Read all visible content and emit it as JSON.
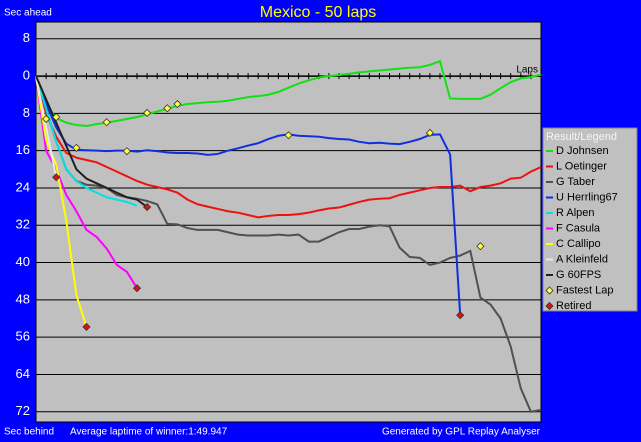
{
  "chart_data": {
    "type": "line",
    "title": "Mexico - 50 laps",
    "y_label_top": "Sec ahead",
    "y_label_bottom": "Sec behind",
    "x_label": "Laps",
    "footer_left": "Average laptime of winner:1:49.947",
    "footer_right": "Generated by GPL Replay Analyser",
    "legend_title": "Result/Legend",
    "y_inverted": true,
    "grid": true,
    "xlim": [
      0,
      50
    ],
    "ylim": [
      -11.6,
      74.2
    ],
    "yticks": [
      {
        "value": -8,
        "label": "8"
      },
      0,
      8,
      16,
      24,
      32,
      40,
      48,
      56,
      64,
      72
    ],
    "x": [
      0,
      1,
      2,
      3,
      4,
      5,
      6,
      7,
      8,
      9,
      10,
      11,
      12,
      13,
      14,
      15,
      16,
      17,
      18,
      19,
      20,
      21,
      22,
      23,
      24,
      25,
      26,
      27,
      28,
      29,
      30,
      31,
      32,
      33,
      34,
      35,
      36,
      37,
      38,
      39,
      40,
      41,
      42,
      43,
      44,
      45,
      46,
      47,
      48,
      49,
      50
    ],
    "series": [
      {
        "name": "D Johnsen",
        "color": "#11e011",
        "values": [
          0,
          6,
          9,
          10,
          10.5,
          10.7,
          10.3,
          10,
          9.6,
          9.2,
          8.8,
          8.2,
          7.6,
          7,
          6.4,
          6,
          5.8,
          5.6,
          5.5,
          5.3,
          4.9,
          4.5,
          4.3,
          4,
          3.4,
          2.5,
          1.6,
          0.9,
          0.3,
          0,
          -0.2,
          -0.5,
          -0.8,
          -1,
          -1.2,
          -1.4,
          -1.6,
          -1.8,
          -1.9,
          -2.4,
          -3.2,
          4.8,
          4.9,
          4.9,
          4.9,
          4,
          2.6,
          1.3,
          0.5,
          0.2,
          -0.3
        ]
      },
      {
        "name": "L Oetinger",
        "color": "#ee1111",
        "values": [
          0,
          8,
          13,
          16.5,
          17.5,
          18,
          18.5,
          19.5,
          20.5,
          21.5,
          22.5,
          23.3,
          23.8,
          24.3,
          25,
          26.5,
          27.5,
          28,
          28.5,
          29,
          29.3,
          29.8,
          30.3,
          30,
          29.8,
          29.8,
          29.6,
          29.3,
          28.8,
          28.4,
          28.2,
          27.6,
          27,
          26.5,
          26.3,
          26.2,
          25.5,
          25,
          24.5,
          24,
          23.8,
          23.8,
          23.5,
          24.7,
          23.8,
          23.5,
          23,
          22,
          21.8,
          20.5,
          19.5
        ]
      },
      {
        "name": "G Taber",
        "color": "#505050",
        "values": [
          0,
          7,
          14,
          20,
          22.5,
          23.3,
          23.5,
          24,
          25.5,
          26,
          26.3,
          26.8,
          27.5,
          31.7,
          31.8,
          32.6,
          33,
          33,
          33,
          33.5,
          34,
          34.2,
          34.2,
          34.2,
          34,
          34.2,
          34,
          35.5,
          35.5,
          34.5,
          33.5,
          32.8,
          32.8,
          32.3,
          32,
          32.2,
          36.8,
          38.8,
          39,
          40.5,
          40,
          39,
          38.5,
          37.5,
          47.5,
          49,
          52,
          58,
          67,
          72,
          71.6
        ]
      },
      {
        "name": "U Herrling67",
        "color": "#1030e0",
        "values": [
          0,
          6,
          11,
          14.5,
          15.8,
          15.9,
          16,
          16.1,
          16,
          16,
          16.2,
          15.9,
          16.1,
          16.4,
          16.5,
          16.5,
          16.6,
          16.9,
          16.7,
          16,
          15.5,
          14.9,
          14.4,
          13.5,
          12.8,
          12.5,
          12.8,
          12.9,
          13,
          13.3,
          13.5,
          13.6,
          14.1,
          14.4,
          14.3,
          14.5,
          14.6,
          14.1,
          13.5,
          12.6,
          12.5,
          16.8,
          51.3,
          null,
          null,
          null,
          null,
          null,
          null,
          null,
          null
        ]
      },
      {
        "name": "R Alpen",
        "color": "#00e0e0",
        "values": [
          0,
          7,
          14,
          20,
          22.5,
          24,
          25,
          26,
          26.5,
          27,
          27.8,
          null,
          null,
          null,
          null,
          null,
          null,
          null,
          null,
          null,
          null,
          null,
          null,
          null,
          null,
          null,
          null,
          null,
          null,
          null,
          null,
          null,
          null,
          null,
          null,
          null,
          null,
          null,
          null,
          null,
          null,
          null,
          null,
          null,
          null,
          null,
          null,
          null,
          null,
          null,
          null
        ]
      },
      {
        "name": "F Casula",
        "color": "#ff00ff",
        "values": [
          0,
          16,
          20,
          25.5,
          29,
          33,
          34.5,
          37,
          40.5,
          42,
          45.5,
          null,
          null,
          null,
          null,
          null,
          null,
          null,
          null,
          null,
          null,
          null,
          null,
          null,
          null,
          null,
          null,
          null,
          null,
          null,
          null,
          null,
          null,
          null,
          null,
          null,
          null,
          null,
          null,
          null,
          null,
          null,
          null,
          null,
          null,
          null,
          null,
          null,
          null,
          null,
          null
        ]
      },
      {
        "name": "C Callipo",
        "color": "#ffff00",
        "values": [
          0,
          13.7,
          19,
          31,
          47,
          53.8,
          null,
          null,
          null,
          null,
          null,
          null,
          null,
          null,
          null,
          null,
          null,
          null,
          null,
          null,
          null,
          null,
          null,
          null,
          null,
          null,
          null,
          null,
          null,
          null,
          null,
          null,
          null,
          null,
          null,
          null,
          null,
          null,
          null,
          null,
          null,
          null,
          null,
          null,
          null,
          null,
          null,
          null,
          null,
          null,
          null
        ]
      },
      {
        "name": "A Kleinfeld",
        "color": "#e8e8e8",
        "values": [
          0,
          11,
          21.7,
          null,
          null,
          null,
          null,
          null,
          null,
          null,
          null,
          null,
          null,
          null,
          null,
          null,
          null,
          null,
          null,
          null,
          null,
          null,
          null,
          null,
          null,
          null,
          null,
          null,
          null,
          null,
          null,
          null,
          null,
          null,
          null,
          null,
          null,
          null,
          null,
          null,
          null,
          null,
          null,
          null,
          null,
          null,
          null,
          null,
          null,
          null,
          null
        ]
      },
      {
        "name": "G 60FPS",
        "color": "#202020",
        "values": [
          0,
          5,
          10,
          15,
          20,
          22,
          23,
          24,
          25,
          26,
          26.5,
          28.1,
          null,
          null,
          null,
          null,
          null,
          null,
          null,
          null,
          null,
          null,
          null,
          null,
          null,
          null,
          null,
          null,
          null,
          null,
          null,
          null,
          null,
          null,
          null,
          null,
          null,
          null,
          null,
          null,
          null,
          null,
          null,
          null,
          null,
          null,
          null,
          null,
          null,
          null,
          null
        ]
      }
    ],
    "fastest_lap": {
      "name": "Fastest Lap",
      "color": "#ffff40",
      "x": [
        1,
        2,
        4,
        7,
        9,
        11,
        13,
        14,
        25,
        39,
        44
      ],
      "values": [
        9.2,
        8.8,
        15.4,
        9.9,
        16.1,
        7.9,
        6.9,
        6.0,
        12.7,
        12.2,
        36.5
      ]
    },
    "retired": {
      "name": "Retired",
      "color": "#dd1111",
      "x": [
        2,
        5,
        10,
        11,
        42
      ],
      "values": [
        21.7,
        53.8,
        45.5,
        28.1,
        51.3
      ]
    }
  }
}
